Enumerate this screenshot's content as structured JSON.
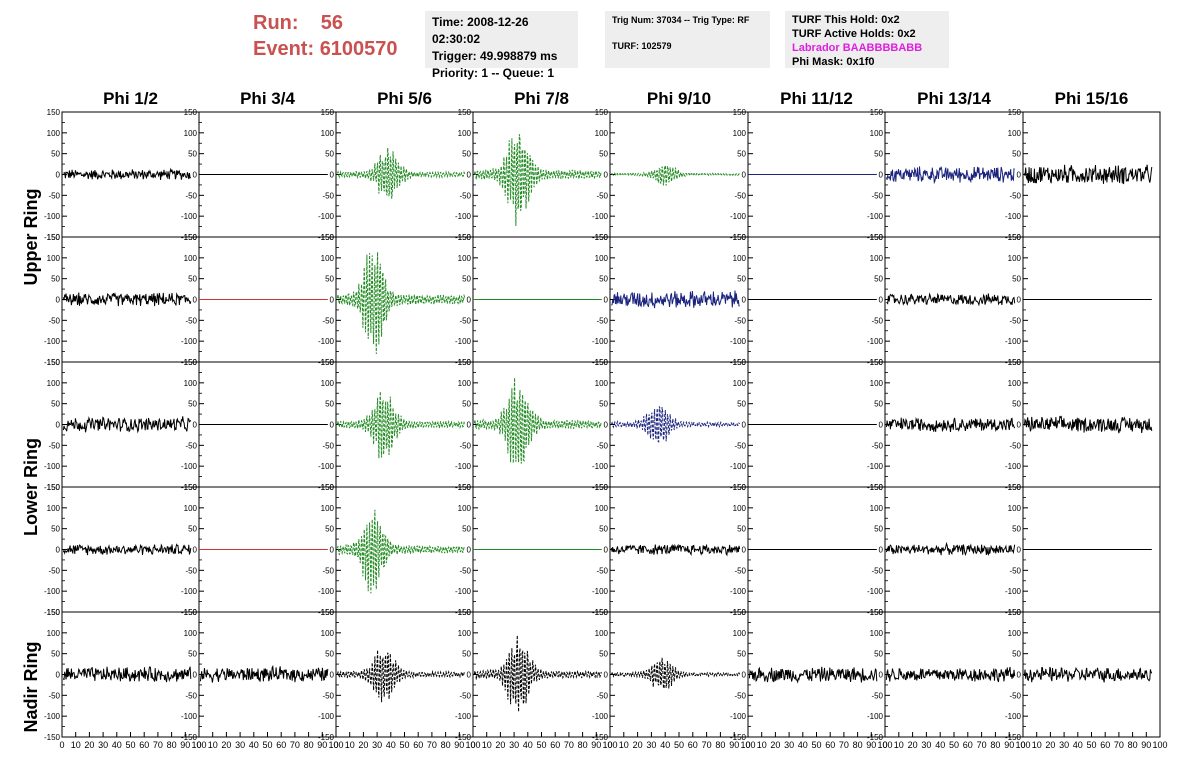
{
  "header": {
    "run_label": "Run:",
    "run_value": "56",
    "event_label": "Event:",
    "event_value": "6100570",
    "time": "Time: 2008-12-26 02:30:02",
    "trigger": "Trigger: 49.998879 ms",
    "priority": "Priority: 1 -- Queue: 1",
    "trig_num": "Trig Num: 37034 -- Trig Type: RF",
    "turf": "TURF: 102579",
    "turf_this_hold": "TURF This Hold: 0x2",
    "turf_active_holds": "TURF Active Holds: 0x2",
    "labrador": "Labrador BAABBBBABB",
    "phi_mask": "Phi Mask: 0x1f0"
  },
  "colors": {
    "header_red": "#c9514f",
    "labrador_magenta": "#e01ee0"
  },
  "chart_data": {
    "type": "line",
    "columns": [
      "Phi 1/2",
      "Phi 3/4",
      "Phi 5/6",
      "Phi 7/8",
      "Phi 9/10",
      "Phi 11/12",
      "Phi 13/14",
      "Phi 15/16"
    ],
    "ring_labels": [
      "Upper Ring",
      "Lower Ring",
      "Nadir Ring"
    ],
    "ylim": [
      -150,
      150
    ],
    "xlim": [
      0,
      100
    ],
    "y_ticks": [
      "150",
      "100",
      "50",
      "0",
      "-50",
      "-100",
      "-150"
    ],
    "x_ticks": [
      "0",
      "10",
      "20",
      "30",
      "40",
      "50",
      "60",
      "70",
      "80",
      "90",
      "100"
    ],
    "colors": {
      "black": "#000000",
      "green": "#228b22",
      "blue": "#1a237e",
      "red": "#cc3333"
    },
    "panels": [
      [
        {
          "style": "noise",
          "amp": 12,
          "color": "black"
        },
        {
          "style": "flat",
          "color": "black"
        },
        {
          "style": "pulse",
          "amp": 72,
          "center": 38,
          "color": "green",
          "dash": true
        },
        {
          "style": "pulse",
          "amp": 125,
          "center": 33,
          "color": "green",
          "dash": true
        },
        {
          "style": "pulse",
          "amp": 28,
          "center": 40,
          "color": "green",
          "dash": true
        },
        {
          "style": "flat",
          "color": "blue"
        },
        {
          "style": "noise",
          "amp": 18,
          "color": "blue"
        },
        {
          "style": "noise",
          "amp": 22,
          "color": "black"
        }
      ],
      [
        {
          "style": "noise",
          "amp": 15,
          "color": "black"
        },
        {
          "style": "flat",
          "color": "red"
        },
        {
          "style": "pulse",
          "amp": 135,
          "center": 28,
          "color": "green",
          "dash": true
        },
        {
          "style": "flat",
          "color": "green"
        },
        {
          "style": "noise",
          "amp": 20,
          "color": "blue"
        },
        {
          "style": "flat",
          "color": "black"
        },
        {
          "style": "noise",
          "amp": 13,
          "color": "black"
        },
        {
          "style": "flat",
          "color": "black"
        }
      ],
      [
        {
          "style": "noise",
          "amp": 17,
          "color": "black"
        },
        {
          "style": "flat",
          "color": "black"
        },
        {
          "style": "pulse",
          "amp": 95,
          "center": 35,
          "color": "green",
          "dash": true
        },
        {
          "style": "pulse",
          "amp": 120,
          "center": 33,
          "color": "green",
          "dash": true
        },
        {
          "style": "pulse",
          "amp": 60,
          "center": 35,
          "color": "blue",
          "dash": true
        },
        {
          "style": "flat",
          "color": "black"
        },
        {
          "style": "noise",
          "amp": 16,
          "color": "black"
        },
        {
          "style": "noise",
          "amp": 18,
          "color": "black"
        }
      ],
      [
        {
          "style": "noise",
          "amp": 12,
          "color": "black"
        },
        {
          "style": "flat",
          "color": "red"
        },
        {
          "style": "pulse",
          "amp": 110,
          "center": 27,
          "color": "green",
          "dash": true
        },
        {
          "style": "flat",
          "color": "green"
        },
        {
          "style": "noise",
          "amp": 12,
          "color": "black"
        },
        {
          "style": "flat",
          "color": "black"
        },
        {
          "style": "noise",
          "amp": 12,
          "color": "black"
        },
        {
          "style": "flat",
          "color": "black"
        }
      ],
      [
        {
          "style": "noise",
          "amp": 17,
          "color": "black"
        },
        {
          "style": "noise",
          "amp": 17,
          "color": "black"
        },
        {
          "style": "pulse",
          "amp": 75,
          "center": 35,
          "color": "black",
          "dash": true
        },
        {
          "style": "pulse",
          "amp": 100,
          "center": 33,
          "color": "black",
          "dash": true
        },
        {
          "style": "pulse",
          "amp": 45,
          "center": 38,
          "color": "black",
          "dash": true
        },
        {
          "style": "noise",
          "amp": 17,
          "color": "black"
        },
        {
          "style": "noise",
          "amp": 17,
          "color": "black"
        },
        {
          "style": "noise",
          "amp": 17,
          "color": "black"
        }
      ]
    ]
  }
}
